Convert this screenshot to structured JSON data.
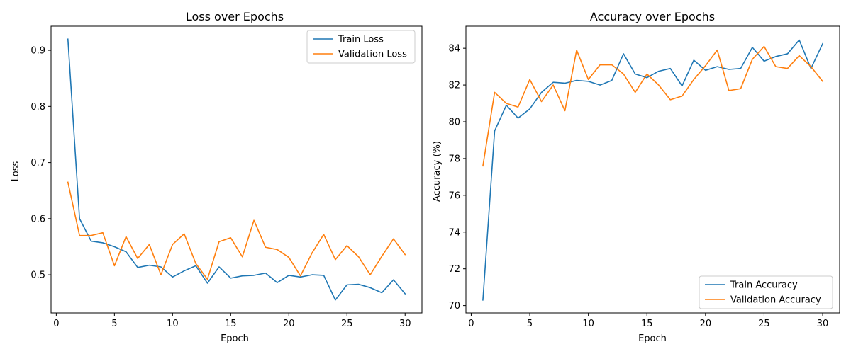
{
  "chart_data": [
    {
      "type": "line",
      "title": "Loss over Epochs",
      "xlabel": "Epoch",
      "ylabel": "Loss",
      "xlim": [
        -0.45,
        31.45
      ],
      "ylim": [
        0.432,
        0.943
      ],
      "xticks": [
        "0",
        "5",
        "10",
        "15",
        "20",
        "25",
        "30"
      ],
      "yticks": [
        "0.5",
        "0.6",
        "0.7",
        "0.8",
        "0.9"
      ],
      "grid": false,
      "legend_position": "top-right",
      "x": [
        1,
        2,
        3,
        4,
        5,
        6,
        7,
        8,
        9,
        10,
        11,
        12,
        13,
        14,
        15,
        16,
        17,
        18,
        19,
        20,
        21,
        22,
        23,
        24,
        25,
        26,
        27,
        28,
        29,
        30
      ],
      "series": [
        {
          "name": "Train Loss",
          "color": "#1f77b4",
          "values": [
            0.92,
            0.6,
            0.56,
            0.557,
            0.55,
            0.541,
            0.513,
            0.517,
            0.514,
            0.496,
            0.507,
            0.516,
            0.485,
            0.514,
            0.494,
            0.498,
            0.499,
            0.503,
            0.486,
            0.499,
            0.496,
            0.5,
            0.499,
            0.455,
            0.482,
            0.483,
            0.477,
            0.468,
            0.491,
            0.466
          ]
        },
        {
          "name": "Validation Loss",
          "color": "#ff7f0e",
          "values": [
            0.665,
            0.57,
            0.57,
            0.575,
            0.516,
            0.568,
            0.529,
            0.554,
            0.5,
            0.554,
            0.573,
            0.52,
            0.492,
            0.559,
            0.566,
            0.532,
            0.597,
            0.549,
            0.545,
            0.531,
            0.498,
            0.539,
            0.572,
            0.527,
            0.552,
            0.532,
            0.5,
            0.533,
            0.564,
            0.536
          ]
        }
      ]
    },
    {
      "type": "line",
      "title": "Accuracy over Epochs",
      "xlabel": "Epoch",
      "ylabel": "Accuracy (%)",
      "xlim": [
        -0.45,
        31.45
      ],
      "ylim": [
        69.6,
        85.2
      ],
      "xticks": [
        "0",
        "5",
        "10",
        "15",
        "20",
        "25",
        "30"
      ],
      "yticks": [
        "70",
        "72",
        "74",
        "76",
        "78",
        "80",
        "82",
        "84"
      ],
      "grid": false,
      "legend_position": "bottom-right",
      "x": [
        1,
        2,
        3,
        4,
        5,
        6,
        7,
        8,
        9,
        10,
        11,
        12,
        13,
        14,
        15,
        16,
        17,
        18,
        19,
        20,
        21,
        22,
        23,
        24,
        25,
        26,
        27,
        28,
        29,
        30
      ],
      "series": [
        {
          "name": "Train Accuracy",
          "color": "#1f77b4",
          "values": [
            70.3,
            79.5,
            80.9,
            80.2,
            80.7,
            81.6,
            82.15,
            82.1,
            82.25,
            82.2,
            82.0,
            82.25,
            83.7,
            82.6,
            82.4,
            82.75,
            82.9,
            81.95,
            83.35,
            82.8,
            83.0,
            82.85,
            82.9,
            84.05,
            83.3,
            83.55,
            83.7,
            84.45,
            82.9,
            84.25
          ]
        },
        {
          "name": "Validation Accuracy",
          "color": "#ff7f0e",
          "values": [
            77.6,
            81.6,
            81.0,
            80.8,
            82.3,
            81.1,
            82.0,
            80.6,
            83.9,
            82.3,
            83.1,
            83.1,
            82.6,
            81.6,
            82.6,
            82.0,
            81.2,
            81.4,
            82.3,
            83.05,
            83.9,
            81.7,
            81.8,
            83.4,
            84.1,
            83.0,
            82.9,
            83.6,
            83.0,
            82.2
          ]
        }
      ]
    }
  ]
}
